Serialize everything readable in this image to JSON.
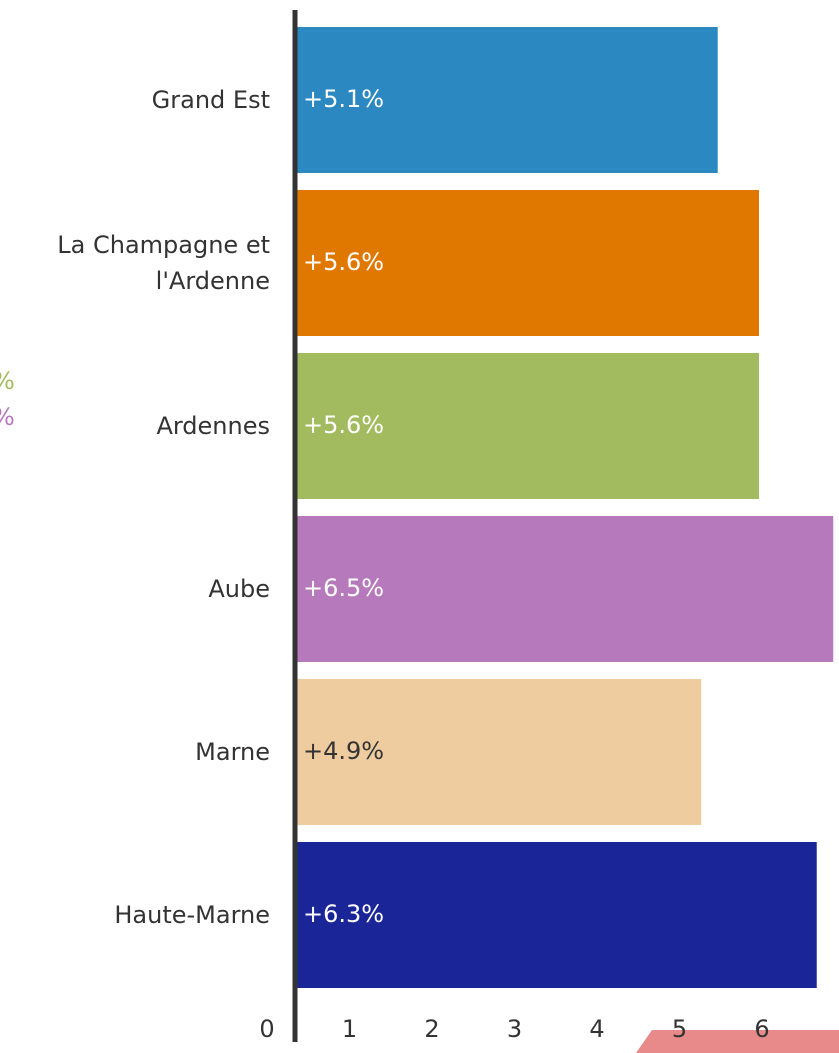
{
  "chart_data": {
    "type": "barh",
    "categories": [
      "Grand Est",
      "La Champagne et l'Ardenne",
      "Ardennes",
      "Aube",
      "Marne",
      "Haute-Marne"
    ],
    "values": [
      5.1,
      5.6,
      5.6,
      6.5,
      4.9,
      6.3
    ],
    "value_labels": [
      "+5.1%",
      "+5.6%",
      "+5.6%",
      "+6.5%",
      "+4.9%",
      "+6.3%"
    ],
    "colors": [
      "#2b88c1",
      "#e07800",
      "#a2bb5e",
      "#b679bb",
      "#efcba0",
      "#1a2597"
    ],
    "label_colors": [
      "#ffffff",
      "#ffffff",
      "#ffffff",
      "#ffffff",
      "#333333",
      "#ffffff"
    ],
    "xlim": [
      0,
      6.57
    ],
    "xticks": [
      0,
      1,
      2,
      3,
      4,
      5,
      6
    ],
    "clipped_labels": [
      {
        "text": "%",
        "color": "#a2bb5e"
      },
      {
        "text": "%",
        "color": "#b679bb"
      }
    ]
  }
}
